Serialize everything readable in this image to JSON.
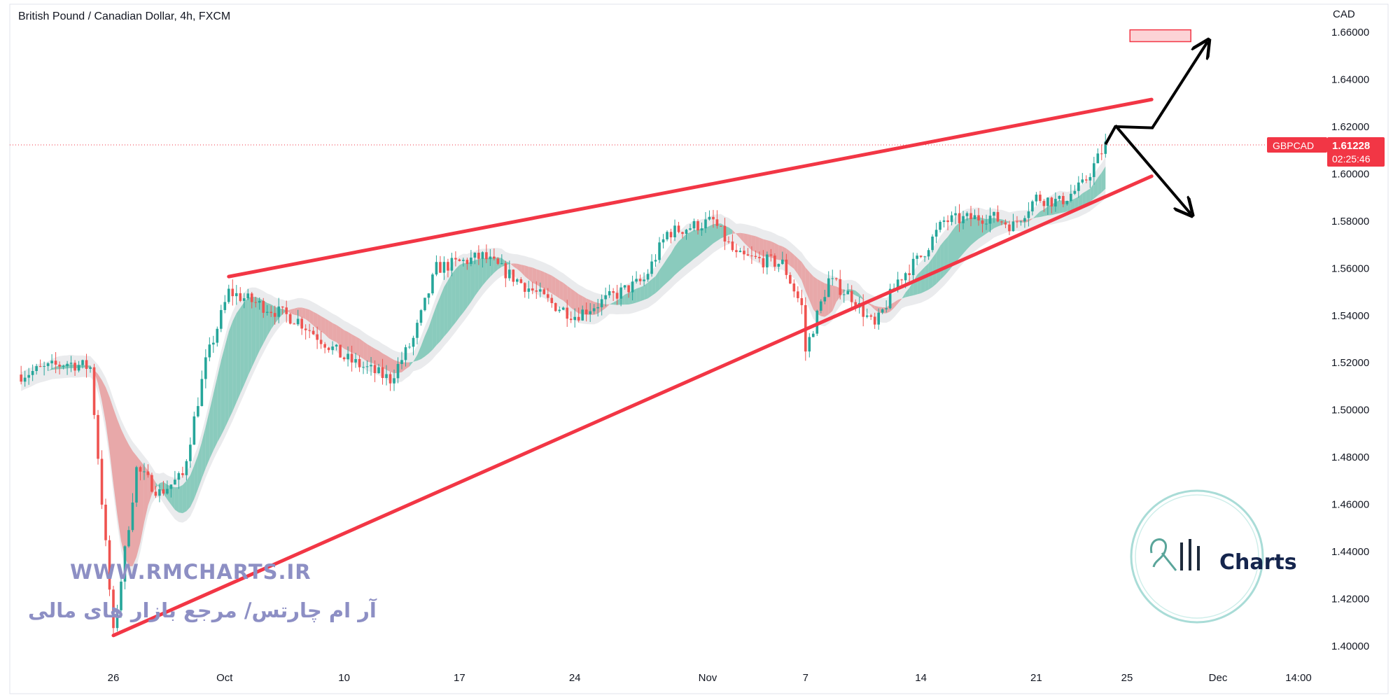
{
  "header": {
    "title": "British Pound / Canadian Dollar, 4h, FXCM"
  },
  "price_axis": {
    "currency": "CAD",
    "labels": [
      "1.66000",
      "1.64000",
      "1.62000",
      "1.60000",
      "1.58000",
      "1.56000",
      "1.54000",
      "1.52000",
      "1.50000",
      "1.48000",
      "1.46000",
      "1.44000",
      "1.42000",
      "1.40000"
    ]
  },
  "time_axis": {
    "labels": [
      "26",
      "Oct",
      "10",
      "17",
      "24",
      "Nov",
      "7",
      "14",
      "21",
      "25",
      "Dec",
      "14:00"
    ]
  },
  "last_price": {
    "symbol": "GBPCAD",
    "value": "1.61228",
    "countdown": "02:25:46",
    "color": "#f23645",
    "price": 1.61228
  },
  "watermark": {
    "url": "WWW.RMCHARTS.IR",
    "persian": "آر ام چارتس/ مرجع بازار های مالی",
    "logo_text": "Charts",
    "logo_script": "RM"
  },
  "colors": {
    "up": "#26a69a",
    "down": "#ef5350",
    "trendline": "#f23645",
    "arrows": "#000000"
  },
  "chart_data": {
    "type": "candlestick",
    "title": "British Pound / Canadian Dollar, 4h, FXCM",
    "ylabel": "CAD",
    "ylim": [
      1.395,
      1.665
    ],
    "price_path": [
      [
        "Sep 20",
        1.515
      ],
      [
        "Sep 22",
        1.52
      ],
      [
        "Sep 23",
        1.518
      ],
      [
        "Sep 26",
        1.405
      ],
      [
        "Sep 27",
        1.475
      ],
      [
        "Sep 28",
        1.465
      ],
      [
        "Sep 29",
        1.472
      ],
      [
        "Sep 30",
        1.52
      ],
      [
        "Oct 3",
        1.55
      ],
      [
        "Oct 6",
        1.538
      ],
      [
        "Oct 7",
        1.53
      ],
      [
        "Oct 10",
        1.522
      ],
      [
        "Oct 12",
        1.513
      ],
      [
        "Oct 13",
        1.53
      ],
      [
        "Oct 14",
        1.56
      ],
      [
        "Oct 18",
        1.565
      ],
      [
        "Oct 21",
        1.545
      ],
      [
        "Oct 24",
        1.54
      ],
      [
        "Oct 27",
        1.555
      ],
      [
        "Oct 28",
        1.575
      ],
      [
        "Nov 1",
        1.58
      ],
      [
        "Nov 2",
        1.565
      ],
      [
        "Nov 4",
        1.562
      ],
      [
        "Nov 5",
        1.54
      ],
      [
        "Nov 6",
        1.525
      ],
      [
        "Nov 8",
        1.555
      ],
      [
        "Nov 9",
        1.548
      ],
      [
        "Nov 10",
        1.535
      ],
      [
        "Nov 11",
        1.555
      ],
      [
        "Nov 14",
        1.565
      ],
      [
        "Nov 15",
        1.58
      ],
      [
        "Nov 17",
        1.582
      ],
      [
        "Nov 18",
        1.578
      ],
      [
        "Nov 21",
        1.59
      ],
      [
        "Nov 22",
        1.588
      ],
      [
        "Nov 23",
        1.595
      ],
      [
        "Nov 24",
        1.61228
      ]
    ],
    "trendlines": [
      {
        "name": "upper",
        "from": [
          "Oct 3",
          1.5565
        ],
        "to": [
          "Nov 28",
          1.6315
        ]
      },
      {
        "name": "lower",
        "from": [
          "Sep 26",
          1.4045
        ],
        "to": [
          "Nov 28",
          1.599
        ]
      }
    ],
    "target_zone": {
      "from": "Nov 25",
      "to": "Nov 27",
      "ylim": [
        1.656,
        1.661
      ]
    },
    "projections": [
      {
        "name": "breakout-up",
        "points": [
          [
            "Nov 24",
            1.6125
          ],
          [
            "Nov 24",
            1.62
          ],
          [
            "Nov 25",
            1.6195
          ],
          [
            "Nov 26",
            1.656
          ]
        ]
      },
      {
        "name": "pullback-down",
        "points": [
          [
            "Nov 24",
            1.6205
          ],
          [
            "Nov 26",
            1.583
          ]
        ]
      }
    ]
  }
}
